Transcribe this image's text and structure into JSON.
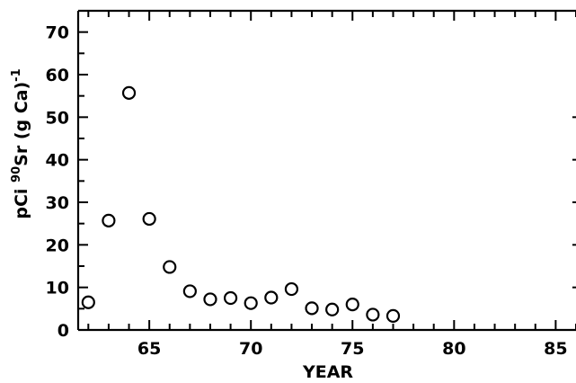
{
  "chart_data": {
    "type": "scatter",
    "xlabel": "YEAR",
    "ylabel_parts": {
      "prefix": "pCi ",
      "isotope_mass": "90",
      "element": "Sr",
      "suffix": " (g Ca)",
      "exponent": "-1"
    },
    "xlim": [
      61.5,
      86
    ],
    "ylim": [
      0,
      75
    ],
    "x_ticks_labeled": [
      65,
      70,
      75,
      80,
      85
    ],
    "x_tick_labels": [
      "65",
      "70",
      "75",
      "80",
      "85"
    ],
    "y_ticks_labeled": [
      0,
      10,
      20,
      30,
      40,
      50,
      60,
      70
    ],
    "y_tick_labels": [
      "0",
      "10",
      "20",
      "30",
      "40",
      "50",
      "60",
      "70"
    ],
    "grid": false,
    "series": [
      {
        "x": [
          62,
          63,
          64,
          65,
          66,
          67,
          68,
          69,
          70,
          71,
          72,
          73,
          74,
          75,
          76,
          77
        ],
        "y": [
          6.5,
          25.7,
          55.7,
          26.1,
          14.8,
          9.1,
          7.2,
          7.5,
          6.3,
          7.6,
          9.6,
          5.1,
          4.8,
          6.0,
          3.6,
          3.3
        ]
      }
    ]
  }
}
